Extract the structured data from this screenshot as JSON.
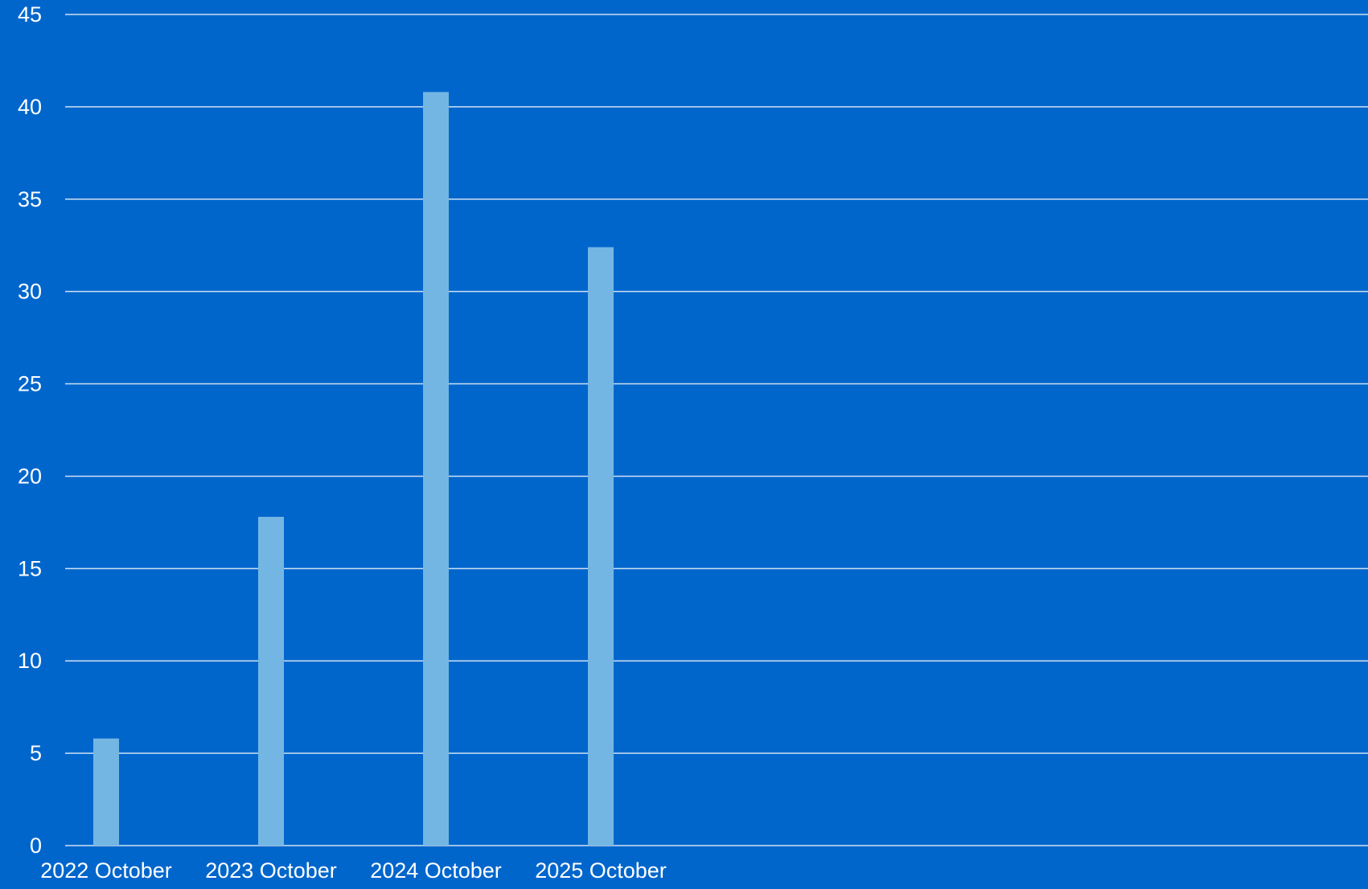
{
  "colors": {
    "background": "#0066cc",
    "gridline": "#cfe0f2",
    "bar": "#74b6e3",
    "text": "#ffffff"
  },
  "chart_data": {
    "type": "bar",
    "title": "",
    "xlabel": "",
    "ylabel": "",
    "categories": [
      "2022 October",
      "2023 October",
      "2024 October",
      "2025 October"
    ],
    "values": [
      5.8,
      17.8,
      40.8,
      32.4
    ],
    "ylim": [
      0,
      45
    ],
    "yticks": [
      0,
      5,
      10,
      15,
      20,
      25,
      30,
      35,
      40,
      45
    ],
    "ytick_labels": [
      "0",
      "5",
      "10",
      "15",
      "20",
      "25",
      "30",
      "35",
      "40",
      "45"
    ],
    "grid": true,
    "legend": "none"
  }
}
